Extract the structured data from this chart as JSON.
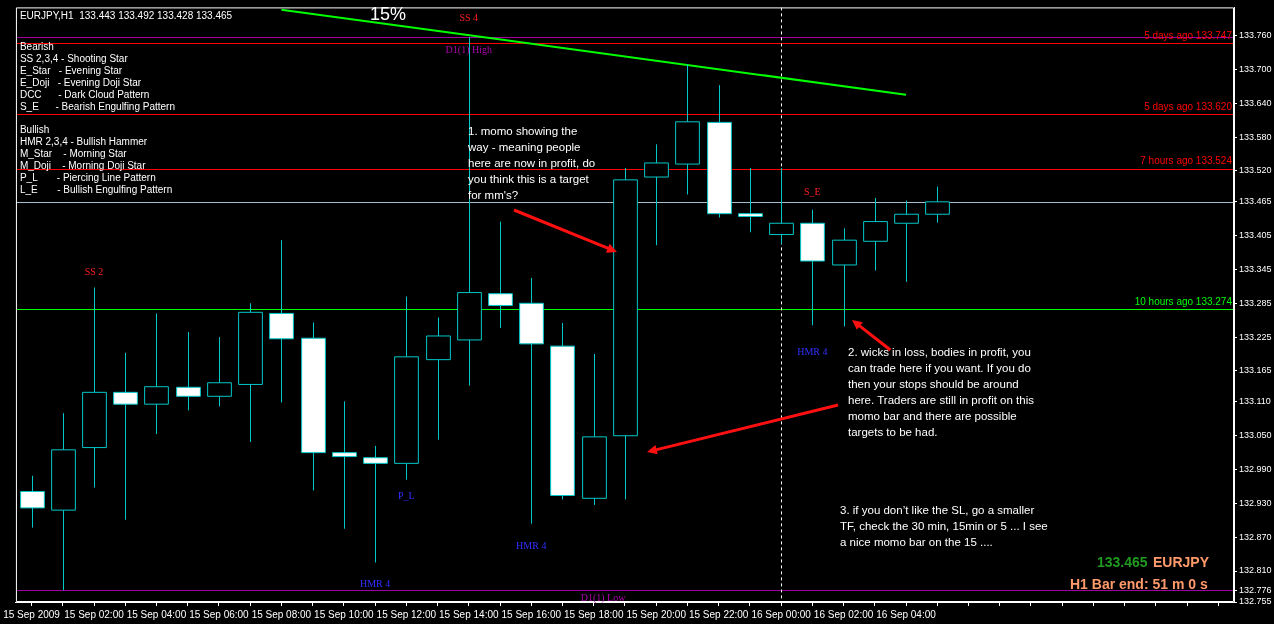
{
  "chart_data": {
    "type": "candlestick",
    "title": "EURJPY,H1  133.443 133.492 133.428 133.465",
    "categories": [
      "15 Sep 2009",
      null,
      "15 Sep 02:00",
      null,
      "15 Sep 04:00",
      null,
      "15 Sep 06:00",
      null,
      "15 Sep 08:00",
      null,
      "15 Sep 10:00",
      null,
      "15 Sep 12:00",
      null,
      "15 Sep 14:00",
      null,
      "15 Sep 16:00",
      null,
      "15 Sep 18:00",
      null,
      "15 Sep 20:00",
      null,
      "15 Sep 22:00",
      null,
      "16 Sep 00:00",
      null,
      "16 Sep 02:00",
      null,
      "16 Sep 04:00",
      null,
      null,
      null,
      null,
      null,
      null,
      null,
      null,
      null,
      null
    ],
    "series": [
      {
        "type": "candlestick",
        "color": "#00c8c8",
        "colors": [
          "#ffffff",
          "#000000",
          "#000000",
          "#ffffff",
          "#000000",
          "#ffffff",
          "#000000",
          "#000000",
          "#ffffff",
          "#ffffff",
          "#ffffff",
          "#ffffff",
          "#000000",
          "#000000",
          "#000000",
          "#ffffff",
          "#ffffff",
          "#ffffff",
          "#000000",
          "#000000",
          "#000000",
          "#000000",
          "#ffffff",
          "#ffffff",
          "#000000",
          "#ffffff",
          "#000000",
          "#000000",
          "#000000",
          "#000000",
          null,
          null,
          null,
          null,
          null,
          null,
          null,
          null,
          null
        ],
        "ohlc": [
          [
            132.951,
            132.979,
            132.887,
            132.922
          ],
          [
            132.918,
            133.09,
            132.776,
            133.025
          ],
          [
            133.029,
            133.313,
            132.958,
            133.127
          ],
          [
            133.127,
            133.197,
            132.901,
            133.106
          ],
          [
            133.106,
            133.267,
            133.053,
            133.137
          ],
          [
            133.136,
            133.234,
            133.095,
            133.12
          ],
          [
            133.12,
            133.225,
            133.102,
            133.144
          ],
          [
            133.141,
            133.285,
            133.039,
            133.269
          ],
          [
            133.267,
            133.397,
            133.109,
            133.222
          ],
          [
            133.223,
            133.251,
            132.953,
            133.02
          ],
          [
            133.02,
            133.111,
            132.885,
            133.013
          ],
          [
            133.011,
            133.032,
            132.825,
            133.001
          ],
          [
            133.001,
            133.297,
            132.972,
            133.19
          ],
          [
            133.185,
            133.26,
            133.043,
            133.227
          ],
          [
            133.22,
            133.757,
            133.139,
            133.304
          ],
          [
            133.302,
            133.43,
            133.241,
            133.281
          ],
          [
            133.285,
            133.33,
            132.894,
            133.213
          ],
          [
            133.209,
            133.25,
            132.937,
            132.944
          ],
          [
            132.939,
            133.195,
            132.927,
            133.048
          ],
          [
            133.05,
            133.525,
            132.937,
            133.504
          ],
          [
            133.509,
            133.567,
            133.388,
            133.534
          ],
          [
            133.532,
            133.709,
            133.478,
            133.607
          ],
          [
            133.606,
            133.672,
            133.437,
            133.444
          ],
          [
            133.444,
            133.525,
            133.411,
            133.439
          ],
          [
            133.407,
            133.525,
            133.39,
            133.427
          ],
          [
            133.427,
            133.451,
            133.246,
            133.36
          ],
          [
            133.353,
            133.418,
            133.244,
            133.397
          ],
          [
            133.395,
            133.472,
            133.343,
            133.43
          ],
          [
            133.427,
            133.467,
            133.323,
            133.443
          ],
          [
            133.443,
            133.492,
            133.428,
            133.465
          ],
          null,
          null,
          null,
          null,
          null,
          null,
          null,
          null,
          null
        ]
      },
      {
        "type": "line",
        "color": "#00ff00",
        "x": [
          "15 Sep 08:00",
          "16 Sep 04:00"
        ],
        "values": [
          133.806,
          133.655
        ]
      }
    ],
    "ylim": [
      132.755,
      133.81
    ],
    "yticks": [
      {
        "value": 133.76,
        "label": "133.760"
      },
      {
        "value": 133.7,
        "label": "133.700"
      },
      {
        "value": 133.64,
        "label": "133.640"
      },
      {
        "value": 133.58,
        "label": "133.580"
      },
      {
        "value": 133.52,
        "label": "133.520"
      },
      133.465,
      133.405,
      133.345,
      133.285,
      133.225,
      133.165,
      {
        "value": 133.11,
        "label": "133.110"
      },
      {
        "value": 133.05,
        "label": "133.050"
      },
      {
        "value": 132.99,
        "label": "132.990"
      },
      {
        "value": 132.93,
        "label": "132.930"
      },
      {
        "value": 132.87,
        "label": "132.870"
      },
      {
        "value": 132.81,
        "label": "132.810"
      },
      132.776,
      132.755
    ],
    "grid": false,
    "legend": false,
    "ref_lines": [
      {
        "axis": "y",
        "value": 133.757,
        "color": "#a000a0"
      },
      {
        "axis": "y",
        "value": 133.747,
        "label": "5 days ago 133.747",
        "color": "#ff0000"
      },
      {
        "axis": "y",
        "value": 133.62,
        "label": "5 days ago 133.620",
        "color": "#ff0000"
      },
      {
        "axis": "y",
        "value": 133.524,
        "label": "7 hours ago 133.524",
        "color": "#ff0000"
      },
      {
        "axis": "y",
        "value": 133.274,
        "label": "10 hours ago 133.274",
        "color": "#00ff00"
      },
      {
        "axis": "y",
        "value": 133.465,
        "color": "#a8bccc"
      },
      {
        "axis": "y",
        "value": 132.776,
        "color": "#a000a0"
      },
      {
        "axis": "x",
        "value": "16 Sep 00:00",
        "color": "#ffffff",
        "line_style": "dashed"
      }
    ],
    "annotations": [
      "15%",
      "Bearish",
      "SS 2,3,4 - Shooting Star",
      "E_Star   - Evening Star",
      "E_Doji   - Evening Doji Star",
      "DCC      - Dark Cloud Pattern",
      "S_E      - Bearish Engulfing Pattern",
      "Bullish",
      "HMR 2,3,4 - Bullish Hammer",
      "M_Star    - Morning Star",
      "M_Doji    - Morning Doji Star",
      "P_L       - Piercing Line Pattern",
      "L_E       - Bullish Engulfing Pattern",
      "1. momo showing the way - meaning people here are now in profit, do you think this is a target for mm's?",
      "2. wicks in loss, bodies in profit, you can trade here if you want. If you do then your stops should be around here. Traders are still in profit on this momo bar and there are possible targets to be had.",
      "3. if you don’t like the SL, go a smaller TF, check the 30 min, 15min or 5 ... I see a nice momo bar on the 15 ....",
      "133.465",
      "EURJPY",
      "H1 Bar end: 51 m 0 s",
      "SS 2",
      "SS 4",
      "D1(1) High",
      "S_E",
      "P_L",
      "HMR 4",
      "HMR 4",
      "HMR 4",
      "D1(1) Low"
    ]
  }
}
